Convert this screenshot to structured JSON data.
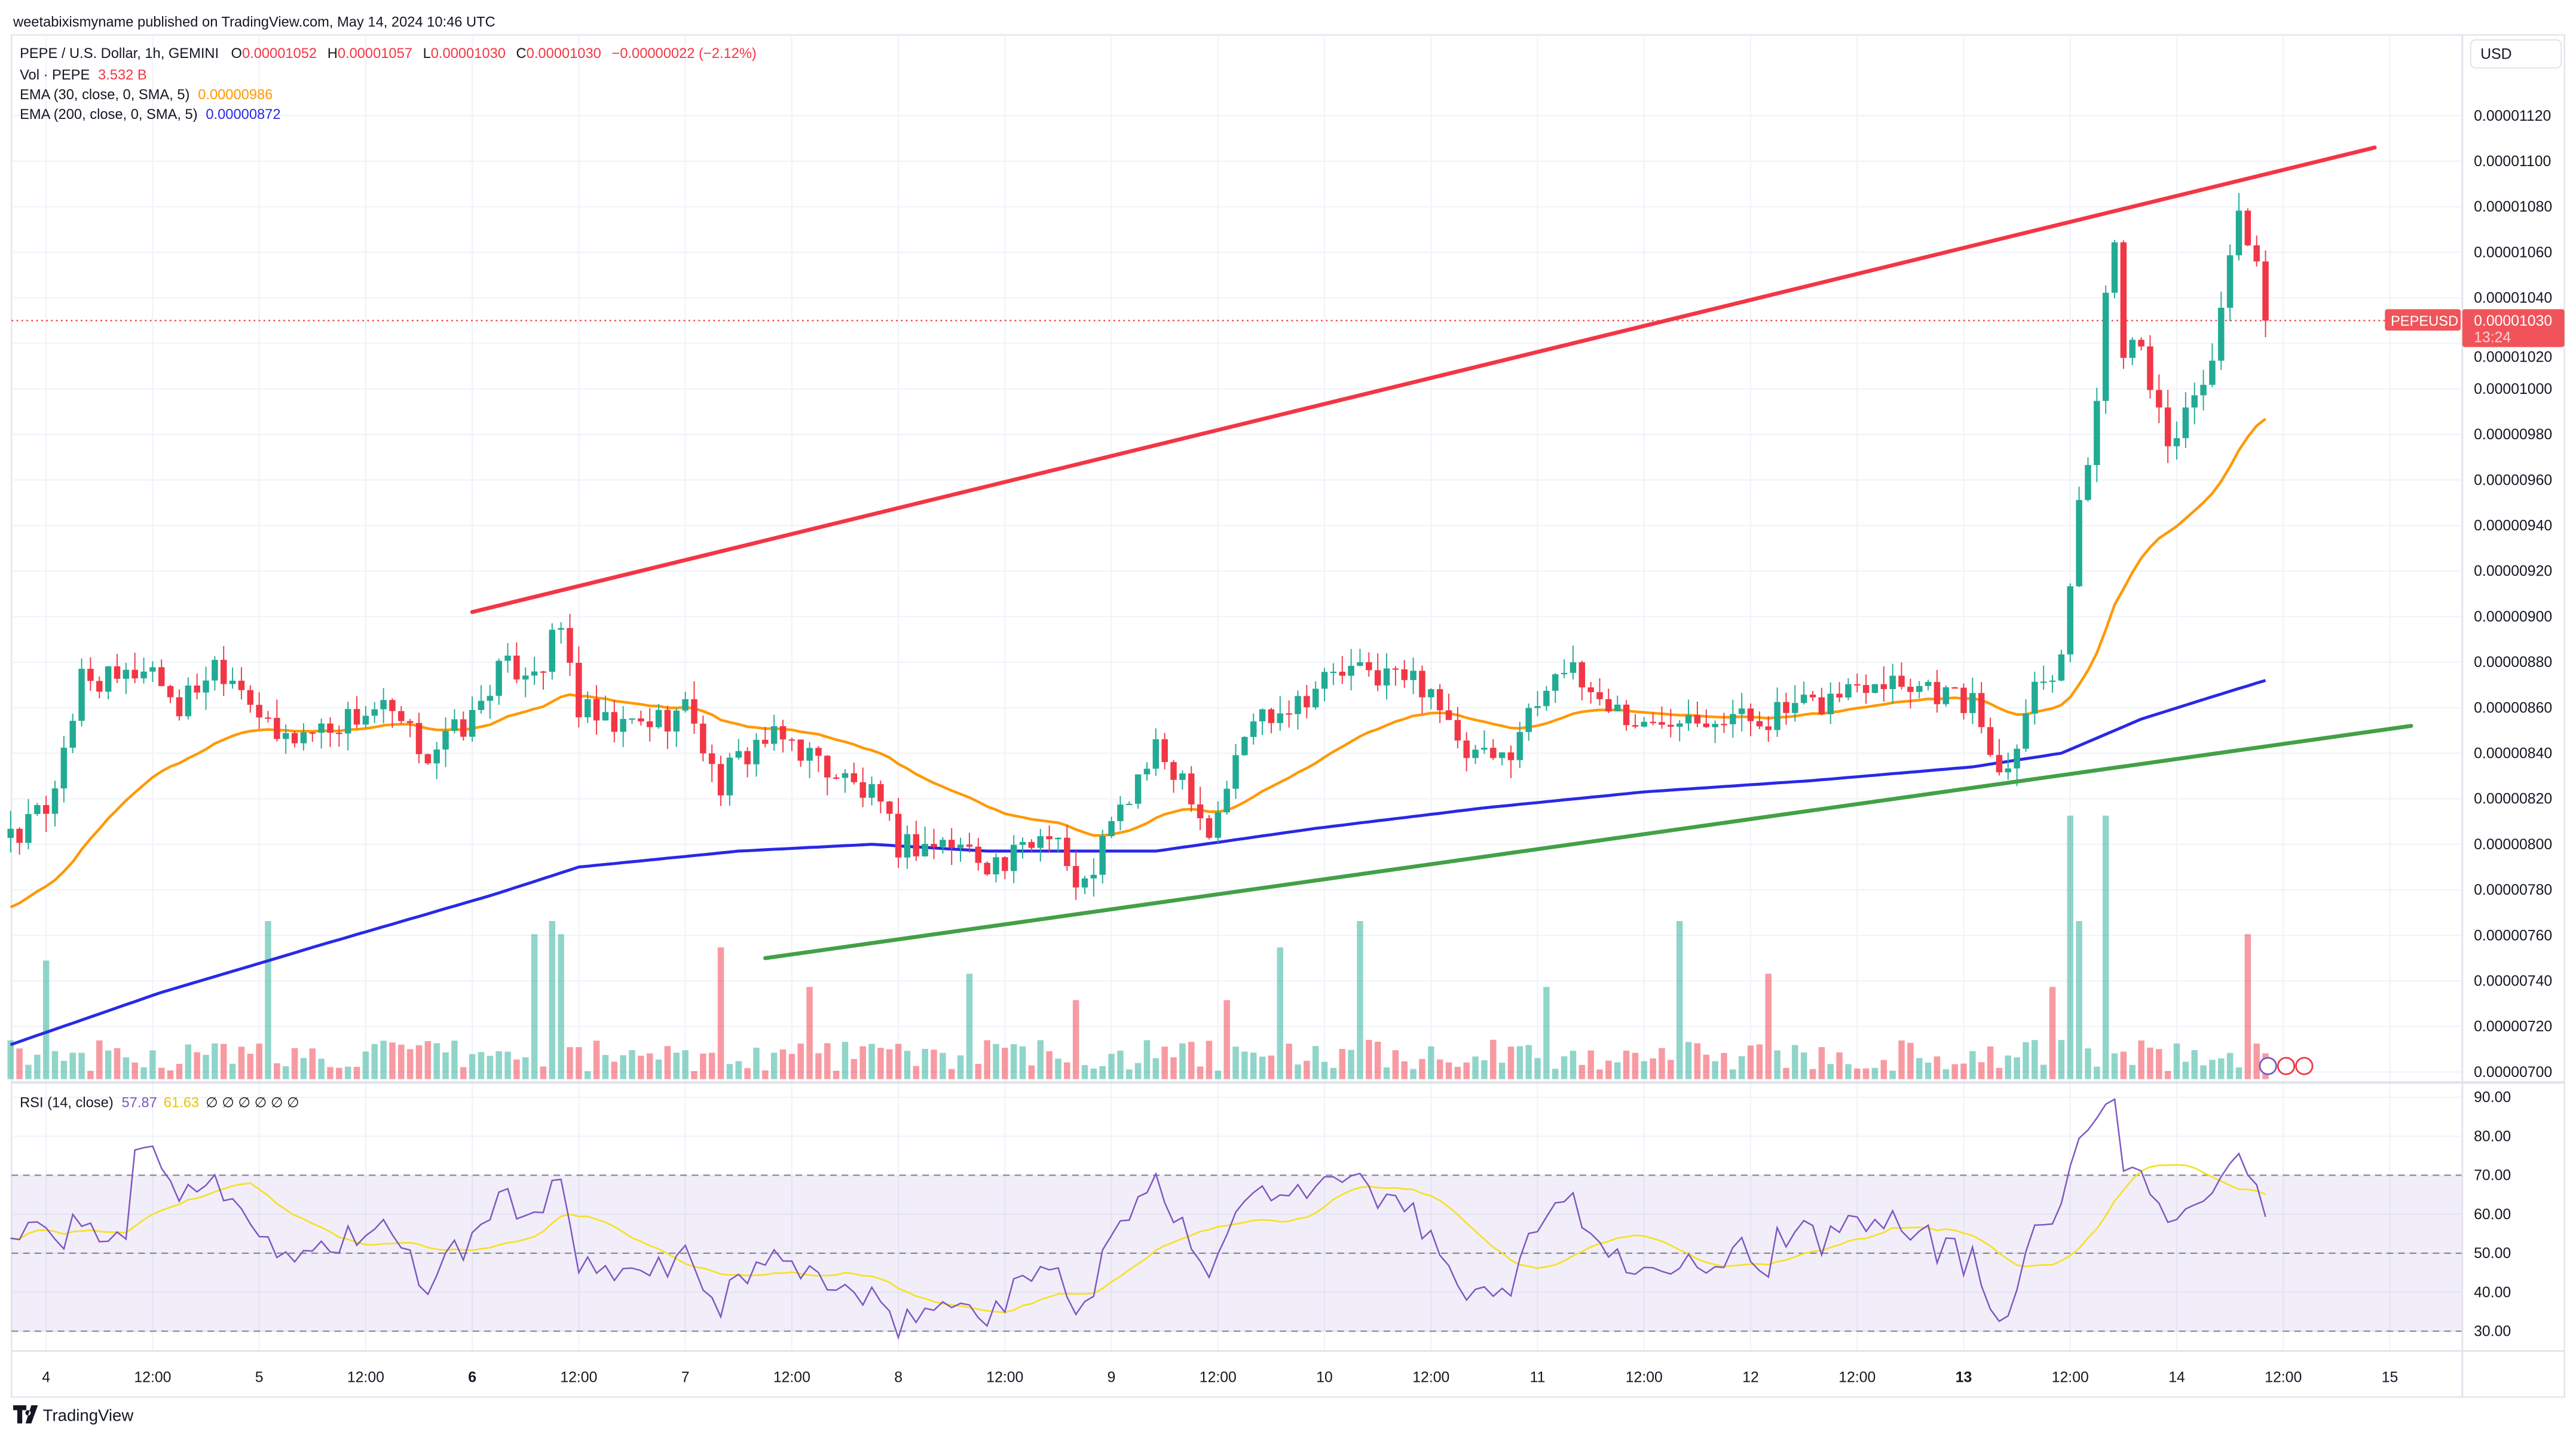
{
  "header": {
    "published": "weetabixismyname published on TradingView.com, May 14, 2024 10:46 UTC"
  },
  "legend": {
    "symbol": "PEPE / U.S. Dollar, 1h, GEMINI",
    "o_label": "O",
    "o": "0.00001052",
    "h_label": "H",
    "h": "0.00001057",
    "l_label": "L",
    "l": "0.00001030",
    "c_label": "C",
    "c": "0.00001030",
    "change": "−0.00000022 (−2.12%)",
    "vol_label": "Vol · PEPE",
    "vol": "3.532 B",
    "ema30_label": "EMA (30, close, 0, SMA, 5)",
    "ema30": "0.00000986",
    "ema200_label": "EMA (200, close, 0, SMA, 5)",
    "ema200": "0.00000872",
    "rsi_label": "RSI (14, close)",
    "rsi": "57.87",
    "rsi_ma": "61.63",
    "rsi_extra": "∅ ∅ ∅ ∅ ∅ ∅"
  },
  "price_axis": {
    "currency": "USD",
    "ticks": [
      "0.00001120",
      "0.00001100",
      "0.00001080",
      "0.00001060",
      "0.00001040",
      "0.00001020",
      "0.00001000",
      "0.00000980",
      "0.00000960",
      "0.00000940",
      "0.00000920",
      "0.00000900",
      "0.00000880",
      "0.00000860",
      "0.00000840",
      "0.00000820",
      "0.00000800",
      "0.00000780",
      "0.00000760",
      "0.00000740",
      "0.00000720",
      "0.00000700"
    ],
    "last_symbol": "PEPEUSD",
    "last_price": "0.00001030",
    "countdown": "13:24"
  },
  "rsi_axis": {
    "ticks": [
      "90.00",
      "80.00",
      "70.00",
      "60.00",
      "50.00",
      "40.00",
      "30.00"
    ]
  },
  "time_axis": {
    "labels": [
      "4",
      "12:00",
      "5",
      "12:00",
      "6",
      "12:00",
      "7",
      "12:00",
      "8",
      "12:00",
      "9",
      "12:00",
      "10",
      "12:00",
      "11",
      "12:00",
      "12",
      "12:00",
      "13",
      "12:00",
      "14",
      "12:00",
      "15"
    ]
  },
  "footer": {
    "brand": "TradingView"
  },
  "colors": {
    "up": "#22ab94",
    "down": "#f23645",
    "ema30": "#ff9800",
    "ema200": "#2929e6",
    "rsi": "#7e57c2",
    "rsi_ma": "#f5e12b",
    "resistance": "#f23645",
    "support": "#43a047"
  },
  "chart_data": {
    "type": "candlestick",
    "title": "PEPE / U.S. Dollar, 1h, GEMINI",
    "price_unit": "1e-8 USD",
    "ylim": [
      700,
      1130
    ],
    "x_unit": "hours since May 4 00:00 UTC",
    "xlim": [
      -4,
      272
    ],
    "close_keypoints": [
      [
        -4,
        800
      ],
      [
        0,
        815
      ],
      [
        3,
        850
      ],
      [
        4,
        875
      ],
      [
        8,
        870
      ],
      [
        11.5,
        880
      ],
      [
        15,
        860
      ],
      [
        19,
        880
      ],
      [
        22.5,
        870
      ],
      [
        25.5,
        845
      ],
      [
        30,
        850
      ],
      [
        34,
        855
      ],
      [
        37.5,
        860
      ],
      [
        43,
        840
      ],
      [
        48,
        855
      ],
      [
        50.5,
        875
      ],
      [
        56,
        880
      ],
      [
        58,
        895
      ],
      [
        60,
        860
      ],
      [
        63.5,
        850
      ],
      [
        69,
        855
      ],
      [
        72.7,
        860
      ],
      [
        75.5,
        825
      ],
      [
        80,
        845
      ],
      [
        84,
        845
      ],
      [
        87.5,
        835
      ],
      [
        93,
        820
      ],
      [
        96,
        800
      ],
      [
        102.4,
        800
      ],
      [
        108,
        790
      ],
      [
        113.5,
        810
      ],
      [
        116.3,
        775
      ],
      [
        119,
        800
      ],
      [
        124.7,
        840
      ],
      [
        128.4,
        830
      ],
      [
        131,
        805
      ],
      [
        135.8,
        855
      ],
      [
        141.4,
        865
      ],
      [
        145,
        875
      ],
      [
        150.6,
        875
      ],
      [
        156.2,
        870
      ],
      [
        159,
        840
      ],
      [
        163.6,
        835
      ],
      [
        168.3,
        865
      ],
      [
        170,
        880
      ],
      [
        172.9,
        870
      ],
      [
        178.5,
        855
      ],
      [
        180.3,
        850
      ],
      [
        184,
        860
      ],
      [
        191.5,
        855
      ],
      [
        199,
        860
      ],
      [
        206.3,
        875
      ],
      [
        212,
        870
      ],
      [
        217.4,
        860
      ],
      [
        220.2,
        830
      ],
      [
        224,
        870
      ],
      [
        226.7,
        880
      ],
      [
        228.2,
        920
      ],
      [
        229.5,
        960
      ],
      [
        231.3,
        1000
      ],
      [
        232.6,
        1080
      ],
      [
        234,
        1020
      ],
      [
        236,
        1025
      ],
      [
        238.8,
        970
      ],
      [
        241.5,
        995
      ],
      [
        244.3,
        1015
      ],
      [
        247,
        1075
      ],
      [
        249,
        1050
      ],
      [
        250,
        1030
      ]
    ],
    "ema200_keypoints": [
      [
        -4,
        712
      ],
      [
        13,
        735
      ],
      [
        32,
        757
      ],
      [
        50.5,
        778
      ],
      [
        60,
        790
      ],
      [
        78,
        797
      ],
      [
        93,
        800
      ],
      [
        106,
        797
      ],
      [
        125,
        797
      ],
      [
        143,
        807
      ],
      [
        162,
        816
      ],
      [
        180,
        823
      ],
      [
        199,
        828
      ],
      [
        217,
        834
      ],
      [
        227,
        840
      ],
      [
        236,
        855
      ],
      [
        245,
        866
      ],
      [
        250,
        872
      ]
    ],
    "volume_spike_hours": [
      [
        0,
        "up",
        0.45
      ],
      [
        25,
        "up",
        0.6
      ],
      [
        55,
        "up",
        0.55
      ],
      [
        57,
        "up",
        0.6
      ],
      [
        58,
        "up",
        0.55
      ],
      [
        76,
        "down",
        0.5
      ],
      [
        86,
        "down",
        0.35
      ],
      [
        104,
        "up",
        0.4
      ],
      [
        116,
        "down",
        0.3
      ],
      [
        133,
        "down",
        0.3
      ],
      [
        139,
        "up",
        0.5
      ],
      [
        148,
        "up",
        0.6
      ],
      [
        169,
        "up",
        0.35
      ],
      [
        184,
        "up",
        0.6
      ],
      [
        194,
        "down",
        0.4
      ],
      [
        226,
        "down",
        0.35
      ],
      [
        228,
        "up",
        1.0
      ],
      [
        229,
        "up",
        0.6
      ],
      [
        232,
        "up",
        1.0
      ],
      [
        248,
        "down",
        0.55
      ]
    ],
    "trendlines": [
      {
        "name": "resistance",
        "from": [
          48,
          902
        ],
        "to": [
          262.3,
          1106
        ]
      },
      {
        "name": "support",
        "from": [
          81,
          750
        ],
        "to": [
          266.4,
          852
        ]
      }
    ],
    "rsi_levels": [
      70,
      50,
      30
    ],
    "rsi_ylim": [
      25,
      92
    ]
  }
}
